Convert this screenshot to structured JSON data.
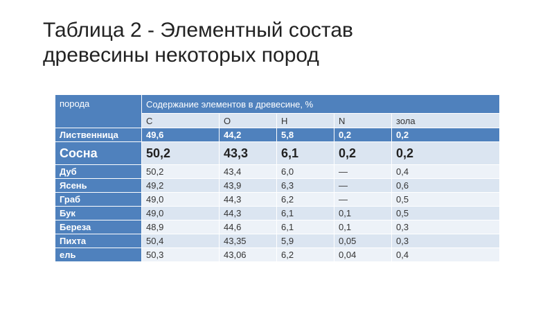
{
  "title": {
    "line1": "Таблица 2 - Элементный состав",
    "line2": "древесины некоторых пород"
  },
  "table": {
    "header": {
      "species": "порода",
      "content": "Содержание элементов в древесине, %",
      "elements": [
        "C",
        "O",
        "H",
        "N",
        "зола"
      ]
    },
    "rows": [
      {
        "name": "Лиственница",
        "values": [
          "49,6",
          "44,2",
          "5,8",
          "0,2",
          "0,2"
        ]
      },
      {
        "name": "Сосна",
        "values": [
          "50,2",
          "43,3",
          "6,1",
          "0,2",
          "0,2"
        ]
      },
      {
        "name": "Дуб",
        "values": [
          "50,2",
          "43,4",
          "6,0",
          "—",
          "0,4"
        ]
      },
      {
        "name": "Ясень",
        "values": [
          "49,2",
          "43,9",
          "6,3",
          "—",
          "0,6"
        ]
      },
      {
        "name": "Граб",
        "values": [
          "49,0",
          "44,3",
          "6,2",
          "—",
          "0,5"
        ]
      },
      {
        "name": "Бук",
        "values": [
          "49,0",
          "44,3",
          "6,1",
          "0,1",
          "0,5"
        ]
      },
      {
        "name": "Береза",
        "values": [
          "48,9",
          "44,6",
          "6,1",
          "0,1",
          "0,3"
        ]
      },
      {
        "name": "Пихта",
        "values": [
          "50,4",
          "43,35",
          "5,9",
          "0,05",
          "0,3"
        ]
      },
      {
        "name": "ель",
        "values": [
          "50,3",
          "43,06",
          "6,2",
          "0,04",
          "0,4"
        ]
      }
    ]
  }
}
